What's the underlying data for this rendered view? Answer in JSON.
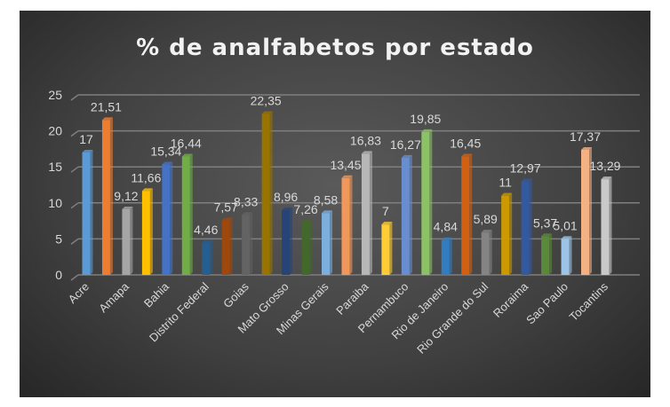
{
  "chart_data": {
    "type": "bar",
    "title": "% de analfabetos por estado",
    "xlabel": "",
    "ylabel": "",
    "ylim": [
      0,
      25
    ],
    "yticks": [
      0,
      5,
      10,
      15,
      20,
      25
    ],
    "grid": true,
    "legend": "none",
    "categories": [
      "Acre",
      "",
      "Amapa",
      "",
      "Bahia",
      "",
      "Distrito Federal",
      "",
      "Goias",
      "",
      "Mato Grosso",
      "",
      "Minas Gerais",
      "",
      "Paraiba",
      "",
      "Pernambuco",
      "",
      "Rio de Janeiro",
      "",
      "Rio Grande do Sul",
      "",
      "Roraima",
      "",
      "Sao Paulo",
      "",
      "Tocantins"
    ],
    "values": [
      17,
      21.51,
      9.12,
      11.66,
      15.34,
      16.44,
      4.46,
      7.57,
      8.33,
      22.35,
      8.96,
      7.26,
      8.58,
      13.45,
      16.83,
      7,
      16.27,
      19.85,
      4.84,
      16.45,
      5.89,
      11,
      12.97,
      5.37,
      5.01,
      17.37,
      13.29
    ],
    "data_labels": [
      "17",
      "21,51",
      "9,12",
      "11,66",
      "15,34",
      "16,44",
      "4,46",
      "7,57",
      "8,33",
      "22,35",
      "8,96",
      "7,26",
      "8,58",
      "13,45",
      "16,83",
      "7",
      "16,27",
      "19,85",
      "4,84",
      "16,45",
      "5,89",
      "11",
      "12,97",
      "5,37",
      "5,01",
      "17,37",
      "13,29"
    ],
    "colors": [
      "#5b9bd5",
      "#ed7d31",
      "#a5a5a5",
      "#ffc000",
      "#4472c4",
      "#70ad47",
      "#255e91",
      "#9e480e",
      "#636363",
      "#997300",
      "#264478",
      "#43682b",
      "#7cafdd",
      "#f1975a",
      "#b7b7b7",
      "#ffcd33",
      "#698ed0",
      "#8cc168",
      "#327dc2",
      "#d26012",
      "#848484",
      "#cc9a00",
      "#335aa1",
      "#5a8a39",
      "#9dc3e6",
      "#f4b183",
      "#c9c9c9"
    ]
  }
}
